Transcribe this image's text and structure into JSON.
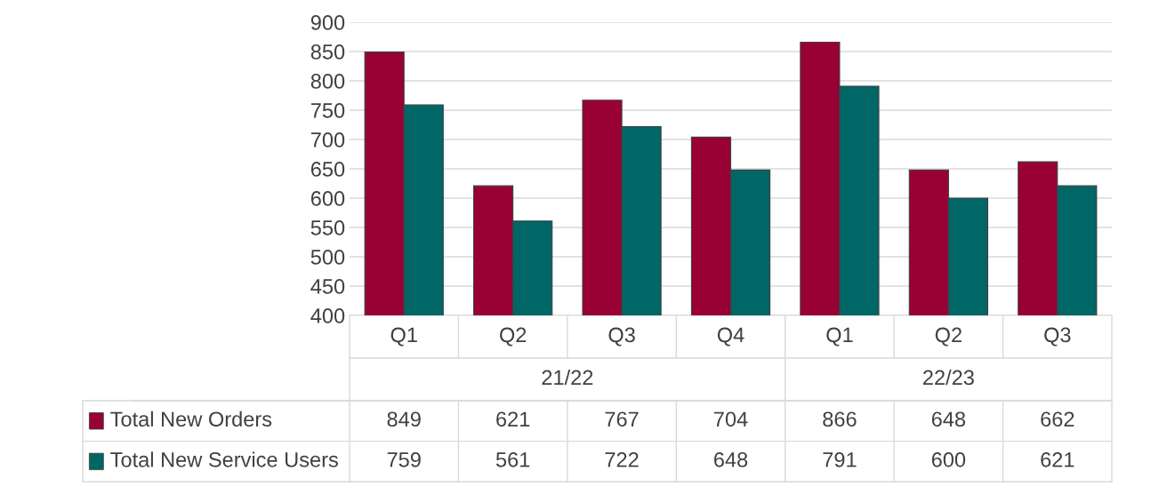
{
  "chart_data": {
    "type": "bar",
    "categories": [
      "Q1",
      "Q2",
      "Q3",
      "Q4",
      "Q1",
      "Q2",
      "Q3"
    ],
    "series": [
      {
        "name": "Total New Orders",
        "color": "#990033",
        "values": [
          849,
          621,
          767,
          704,
          866,
          648,
          662
        ]
      },
      {
        "name": "Total New Service Users",
        "color": "#006666",
        "values": [
          759,
          561,
          722,
          648,
          791,
          600,
          621
        ]
      }
    ],
    "annotations": [
      "21/22",
      "22/23"
    ],
    "ylim": [
      400,
      900
    ],
    "yticks": [
      400,
      450,
      500,
      550,
      600,
      650,
      700,
      750,
      800,
      850,
      900
    ],
    "grid": "y",
    "legend": "bottom",
    "data_labels": true
  }
}
